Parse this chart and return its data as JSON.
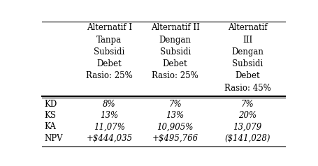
{
  "col_headers": [
    [
      "Alternatif I",
      "Tanpa",
      "Subsidi",
      "Debet",
      "Rasio: 25%",
      ""
    ],
    [
      "Alternatif II",
      "Dengan",
      "Subsidi",
      "Debet",
      "Rasio: 25%",
      ""
    ],
    [
      "Alternatif",
      "III",
      "Dengan",
      "Subsidi",
      "Debet",
      "Rasio: 45%"
    ]
  ],
  "row_labels": [
    "KD",
    "KS",
    "KA",
    "NPV"
  ],
  "data": [
    [
      "8%",
      "7%",
      "7%"
    ],
    [
      "13%",
      "13%",
      "20%"
    ],
    [
      "11,07%",
      "10,905%",
      "13,079"
    ],
    [
      "+$444,035",
      "+$495,766",
      "($141,028)"
    ]
  ],
  "bg_color": "#ffffff",
  "text_color": "#000000",
  "font_size": 8.5
}
